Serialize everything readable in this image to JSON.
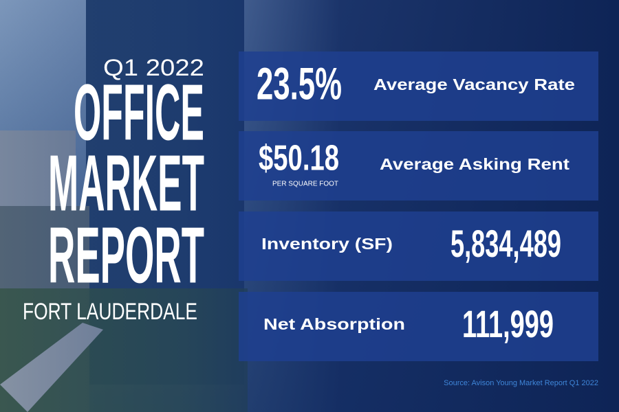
{
  "header": {
    "period": "Q1 2022",
    "title_lines": [
      "OFFICE",
      "MARKET",
      "REPORT"
    ],
    "location": "FORT LAUDERDALE"
  },
  "stats": [
    {
      "value": "23.5%",
      "label": "Average Vacancy Rate"
    },
    {
      "value": "$50.18",
      "note": "PER SQUARE FOOT",
      "label": "Average Asking Rent"
    },
    {
      "label": "Inventory (SF)",
      "value": "5,834,489"
    },
    {
      "label": "Net Absorption",
      "value": "111,999"
    }
  ],
  "source": "Source: Avison Young Market Report Q1 2022"
}
